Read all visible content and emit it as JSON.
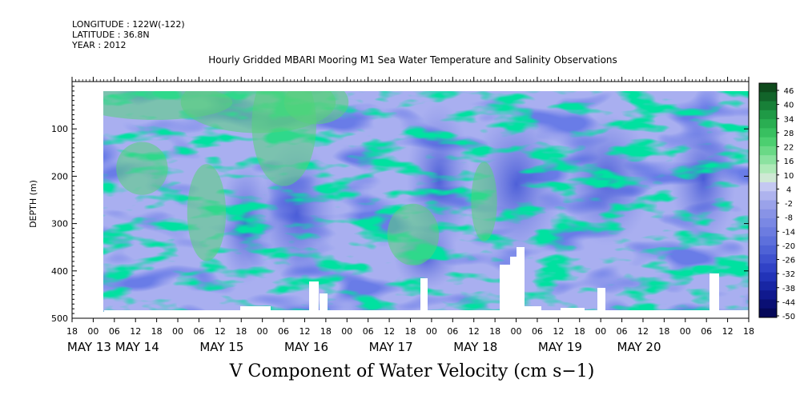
{
  "header": {
    "longitude": "LONGITUDE : 122W(-122)",
    "latitude": "LATITUDE : 36.8N",
    "year": "YEAR : 2012"
  },
  "chart_data": {
    "type": "heatmap",
    "title": "Hourly Gridded MBARI Mooring M1 Sea Water Temperature and Salinity Observations",
    "xlabel": "V Component of Water Velocity (cm s−1)",
    "ylabel": "DEPTH (m)",
    "y_ticks": [
      "100",
      "200",
      "300",
      "400",
      "500"
    ],
    "ylim": [
      500,
      0
    ],
    "x_hour_ticks": [
      "18",
      "00",
      "06",
      "12",
      "18",
      "00",
      "06",
      "12",
      "18",
      "00",
      "06",
      "12",
      "18",
      "00",
      "06",
      "12",
      "18",
      "00",
      "06",
      "12",
      "18",
      "00",
      "06",
      "12",
      "18",
      "00",
      "06",
      "12",
      "18",
      "00",
      "06",
      "12",
      "18"
    ],
    "x_day_labels": [
      "MAY 13",
      "MAY 14",
      "MAY 15",
      "MAY 16",
      "MAY 17",
      "MAY 18",
      "MAY 19",
      "MAY 20"
    ],
    "colorbar_labels": [
      "46",
      "40",
      "34",
      "28",
      "22",
      "16",
      "10",
      "4",
      "-2",
      "-8",
      "-14",
      "-20",
      "-26",
      "-32",
      "-38",
      "-44",
      "-50"
    ],
    "colorbar_colors": [
      "#0e4a1c",
      "#12642a",
      "#188038",
      "#1f9a46",
      "#2aae52",
      "#38c060",
      "#4ccf70",
      "#6ad986",
      "#8be2a0",
      "#aeeab8",
      "#cfe9d4",
      "#c4c8f2",
      "#aeb3ee",
      "#9aa2ea",
      "#8893e6",
      "#7a88e4",
      "#6c7ce0",
      "#5d70dc",
      "#4e62d6",
      "#3f52cf",
      "#3042c6",
      "#2233b8",
      "#1826a4",
      "#10198e",
      "#0a0f74",
      "#050859"
    ],
    "data_extent_depth_m": [
      20,
      480
    ],
    "summary": "Depth-time section May 12 18h to May 20 18h 2012: velocities mostly -2 to -20 cm/s (blue), strongest negative (about -26 to -38) between 150 and 350 m near May 18 and May 19; positive patches (green, 4 to 28) near the surface on May 14 to 15 and in vertical streaks; no data above 20 m and small gaps near 480 m."
  }
}
